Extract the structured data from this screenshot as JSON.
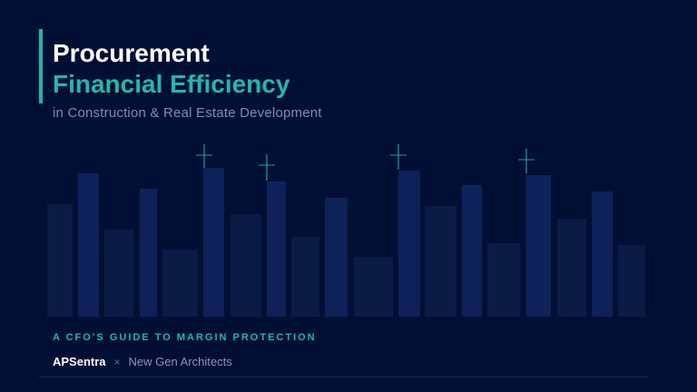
{
  "title": {
    "line1": "Procurement",
    "line2": "Financial Efficiency",
    "subtitle": "in Construction & Real Estate Development"
  },
  "eyebrow": "A CFO'S GUIDE TO MARGIN PROTECTION",
  "brand": {
    "primary": "APSentra",
    "separator": "×",
    "partner": "New Gen Architects"
  },
  "colors": {
    "background": "#020f35",
    "accent": "#22b8ab",
    "bar_dark": "#0a1b46",
    "bar_bright": "#0e2259"
  }
}
